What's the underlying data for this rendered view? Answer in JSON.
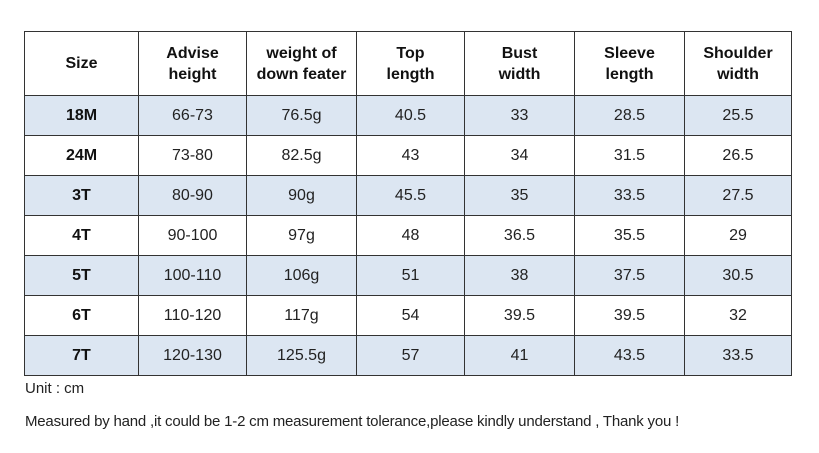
{
  "table": {
    "headers": [
      [
        "Size",
        ""
      ],
      [
        "Advise",
        "height"
      ],
      [
        "weight of",
        "down feater"
      ],
      [
        "Top",
        "length"
      ],
      [
        "Bust",
        "width"
      ],
      [
        "Sleeve",
        "length"
      ],
      [
        "Shoulder",
        "width"
      ]
    ],
    "rows": [
      [
        "18M",
        "66-73",
        "76.5g",
        "40.5",
        "33",
        "28.5",
        "25.5"
      ],
      [
        "24M",
        "73-80",
        "82.5g",
        "43",
        "34",
        "31.5",
        "26.5"
      ],
      [
        "3T",
        "80-90",
        "90g",
        "45.5",
        "35",
        "33.5",
        "27.5"
      ],
      [
        "4T",
        "90-100",
        "97g",
        "48",
        "36.5",
        "35.5",
        "29"
      ],
      [
        "5T",
        "100-110",
        "106g",
        "51",
        "38",
        "37.5",
        "30.5"
      ],
      [
        "6T",
        "110-120",
        "117g",
        "54",
        "39.5",
        "39.5",
        "32"
      ],
      [
        "7T",
        "120-130",
        "125.5g",
        "57",
        "41",
        "43.5",
        "33.5"
      ]
    ],
    "row_shading": [
      "shaded",
      "plain",
      "shaded",
      "plain",
      "shaded",
      "plain",
      "shaded"
    ],
    "colors": {
      "shaded_row": "#dce6f2",
      "plain_row": "#ffffff",
      "border": "#333333"
    }
  },
  "notes": {
    "unit": "Unit : cm",
    "tolerance": "Measured by hand ,it could be 1-2 cm measurement tolerance,please kindly understand , Thank you !"
  }
}
